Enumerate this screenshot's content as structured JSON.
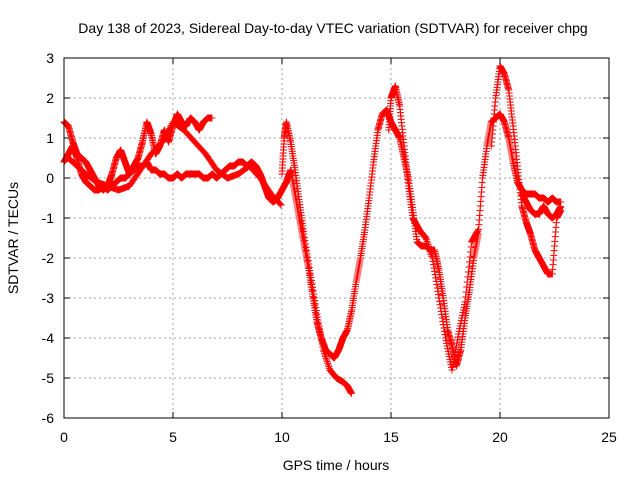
{
  "chart_data": {
    "type": "scatter",
    "title": "Day 138 of 2023, Sidereal Day-to-day VTEC variation (SDTVAR) for receiver chpg",
    "xlabel": "GPS time / hours",
    "ylabel": "SDTVAR / TECUs",
    "xlim": [
      0,
      25
    ],
    "ylim": [
      -6,
      3
    ],
    "xticks": [
      0,
      5,
      10,
      15,
      20,
      25
    ],
    "yticks": [
      -6,
      -5,
      -4,
      -3,
      -2,
      -1,
      0,
      1,
      2,
      3
    ],
    "grid": true,
    "marker": "+",
    "color": "#ff0000",
    "series": [
      {
        "x": [
          0.0,
          0.2,
          0.4,
          0.6,
          0.8,
          1.0,
          1.2,
          1.4,
          1.6,
          1.8,
          2.0,
          2.2,
          2.4,
          2.6,
          2.8,
          3.0,
          3.2,
          3.4,
          3.6,
          3.8,
          4.0,
          4.2,
          4.4,
          4.6,
          4.8,
          5.0,
          5.2,
          5.4,
          5.6,
          5.8,
          6.0,
          6.2,
          6.4,
          6.6,
          6.8,
          7.0,
          7.2,
          7.4,
          7.6,
          7.8,
          8.0,
          8.2,
          8.4,
          8.6,
          8.8,
          9.0,
          9.2,
          9.4,
          9.6,
          9.8,
          10.0,
          10.2,
          10.4,
          10.6,
          10.8,
          11.0,
          11.2,
          11.4,
          11.6,
          11.8,
          12.0,
          12.2,
          12.4,
          12.6,
          12.8,
          13.0,
          13.2,
          13.4,
          13.6,
          13.8,
          14.0,
          14.2,
          14.4,
          14.6,
          14.8,
          15.0,
          15.2,
          15.4,
          15.6,
          15.8,
          16.0,
          16.2,
          16.4,
          16.6,
          16.8,
          17.0,
          17.2,
          17.4,
          17.6,
          17.8,
          18.0,
          18.2,
          18.4,
          18.6,
          18.8,
          19.0,
          19.2,
          19.4,
          19.6,
          19.8,
          20.0,
          20.2,
          20.4,
          20.6,
          20.8,
          21.0,
          21.2,
          21.4,
          21.6,
          21.8,
          22.0,
          22.2,
          22.4,
          22.6,
          22.8
        ],
        "y": [
          0.4,
          0.6,
          0.8,
          0.5,
          0.1,
          -0.1,
          -0.2,
          -0.3,
          -0.3,
          -0.2,
          -0.3,
          -0.2,
          -0.1,
          0.0,
          0.0,
          0.1,
          0.2,
          0.3,
          0.3,
          0.4,
          0.2,
          0.2,
          0.1,
          0.1,
          0.0,
          0.0,
          0.1,
          0.0,
          0.1,
          0.1,
          0.1,
          0.1,
          0.0,
          0.0,
          0.1,
          0.0,
          0.1,
          0.2,
          0.3,
          0.3,
          0.4,
          0.4,
          0.3,
          0.4,
          0.3,
          0.1,
          -0.2,
          -0.5,
          -0.6,
          -0.5,
          -0.3,
          -0.1,
          0.2,
          -0.4,
          -1.0,
          -1.6,
          -2.2,
          -2.9,
          -3.6,
          -4.0,
          -4.3,
          -4.4,
          -4.5,
          -4.3,
          -4.0,
          -3.8,
          -3.3,
          -2.6,
          -2.0,
          -1.3,
          -0.5,
          0.4,
          1.2,
          1.6,
          1.7,
          1.4,
          1.2,
          1.0,
          0.5,
          0.0,
          -0.8,
          -1.6,
          -1.7,
          -1.7,
          -1.8,
          -1.8,
          -2.3,
          -3.0,
          -3.8,
          -4.2,
          -4.7,
          -4.3,
          -3.5,
          -2.8,
          -2.0,
          -1.4,
          0.0,
          0.8,
          1.4,
          1.5,
          1.6,
          1.4,
          1.0,
          0.4,
          -0.1,
          -0.3,
          -0.4,
          -0.4,
          -0.4,
          -0.5,
          -0.5,
          -0.6,
          -0.5,
          -0.6,
          -0.6
        ],
        "branches": [
          {
            "x": [
              0.0,
              0.2,
              0.4,
              0.6,
              0.8,
              1.0,
              1.2,
              1.4,
              1.6,
              1.8,
              2.0,
              2.2,
              2.4,
              2.6,
              2.8,
              3.0,
              3.2,
              3.4,
              3.6,
              3.8,
              4.0,
              4.2,
              4.4,
              4.6,
              4.8,
              5.0,
              5.2,
              5.4,
              5.6,
              5.8,
              6.0,
              6.2,
              6.4,
              6.6,
              6.8
            ],
            "y": [
              1.4,
              1.3,
              0.9,
              0.6,
              0.5,
              0.4,
              0.2,
              0.0,
              -0.2,
              -0.3,
              -0.2,
              0.1,
              0.5,
              0.7,
              0.4,
              0.1,
              0.3,
              0.5,
              0.9,
              1.4,
              1.1,
              0.6,
              0.8,
              1.2,
              0.9,
              1.3,
              1.6,
              1.4,
              1.3,
              1.5,
              1.4,
              1.2,
              1.4,
              1.5,
              1.5
            ]
          },
          {
            "x": [
              0.2,
              0.6,
              1.0,
              1.5,
              2.0,
              2.5,
              3.0,
              3.5,
              4.0,
              4.5,
              5.0,
              5.5,
              6.0,
              6.5,
              7.0,
              7.5,
              8.0,
              8.5,
              9.0,
              9.5,
              10.0
            ],
            "y": [
              0.5,
              0.3,
              0.1,
              -0.1,
              -0.2,
              -0.3,
              -0.2,
              0.2,
              0.6,
              0.9,
              1.4,
              1.2,
              0.9,
              0.6,
              0.2,
              0.0,
              0.1,
              0.3,
              0.0,
              -0.4,
              -0.7
            ]
          },
          {
            "x": [
              10.0,
              10.1,
              10.2,
              10.4,
              10.6,
              10.8,
              11.0,
              11.3,
              11.6,
              11.9,
              12.2,
              12.5,
              12.8,
              13.0,
              13.2
            ],
            "y": [
              0.1,
              1.0,
              1.4,
              0.9,
              0.2,
              -0.6,
              -1.4,
              -2.4,
              -3.4,
              -4.3,
              -4.8,
              -5.0,
              -5.1,
              -5.2,
              -5.4
            ]
          },
          {
            "x": [
              14.9,
              15.0,
              15.2,
              15.4,
              15.6,
              15.8,
              16.0,
              16.3,
              16.6,
              16.9,
              17.2,
              17.5,
              17.8,
              18.1,
              18.4,
              18.7,
              19.0
            ],
            "y": [
              1.2,
              2.0,
              2.3,
              1.8,
              0.8,
              -0.2,
              -1.0,
              -1.3,
              -1.5,
              -2.0,
              -3.0,
              -4.0,
              -4.8,
              -3.9,
              -3.1,
              -1.6,
              -1.3
            ]
          },
          {
            "x": [
              19.6,
              19.8,
              20.0,
              20.2,
              20.4,
              20.6,
              20.8,
              21.0,
              21.2,
              21.4,
              21.6,
              21.8,
              22.0,
              22.2,
              22.4,
              22.6,
              22.8
            ],
            "y": [
              0.8,
              2.0,
              2.8,
              2.6,
              2.2,
              1.3,
              0.3,
              -0.7,
              -1.1,
              -1.4,
              -1.8,
              -2.0,
              -2.2,
              -2.4,
              -2.4,
              -1.0,
              -0.8
            ]
          },
          {
            "x": [
              21.0,
              21.2,
              21.4,
              21.6,
              21.8,
              22.0,
              22.2,
              22.4,
              22.6,
              22.8
            ],
            "y": [
              -0.4,
              -0.6,
              -0.8,
              -0.9,
              -0.9,
              -0.7,
              -0.9,
              -1.0,
              -0.9,
              -0.7
            ]
          }
        ]
      }
    ]
  }
}
